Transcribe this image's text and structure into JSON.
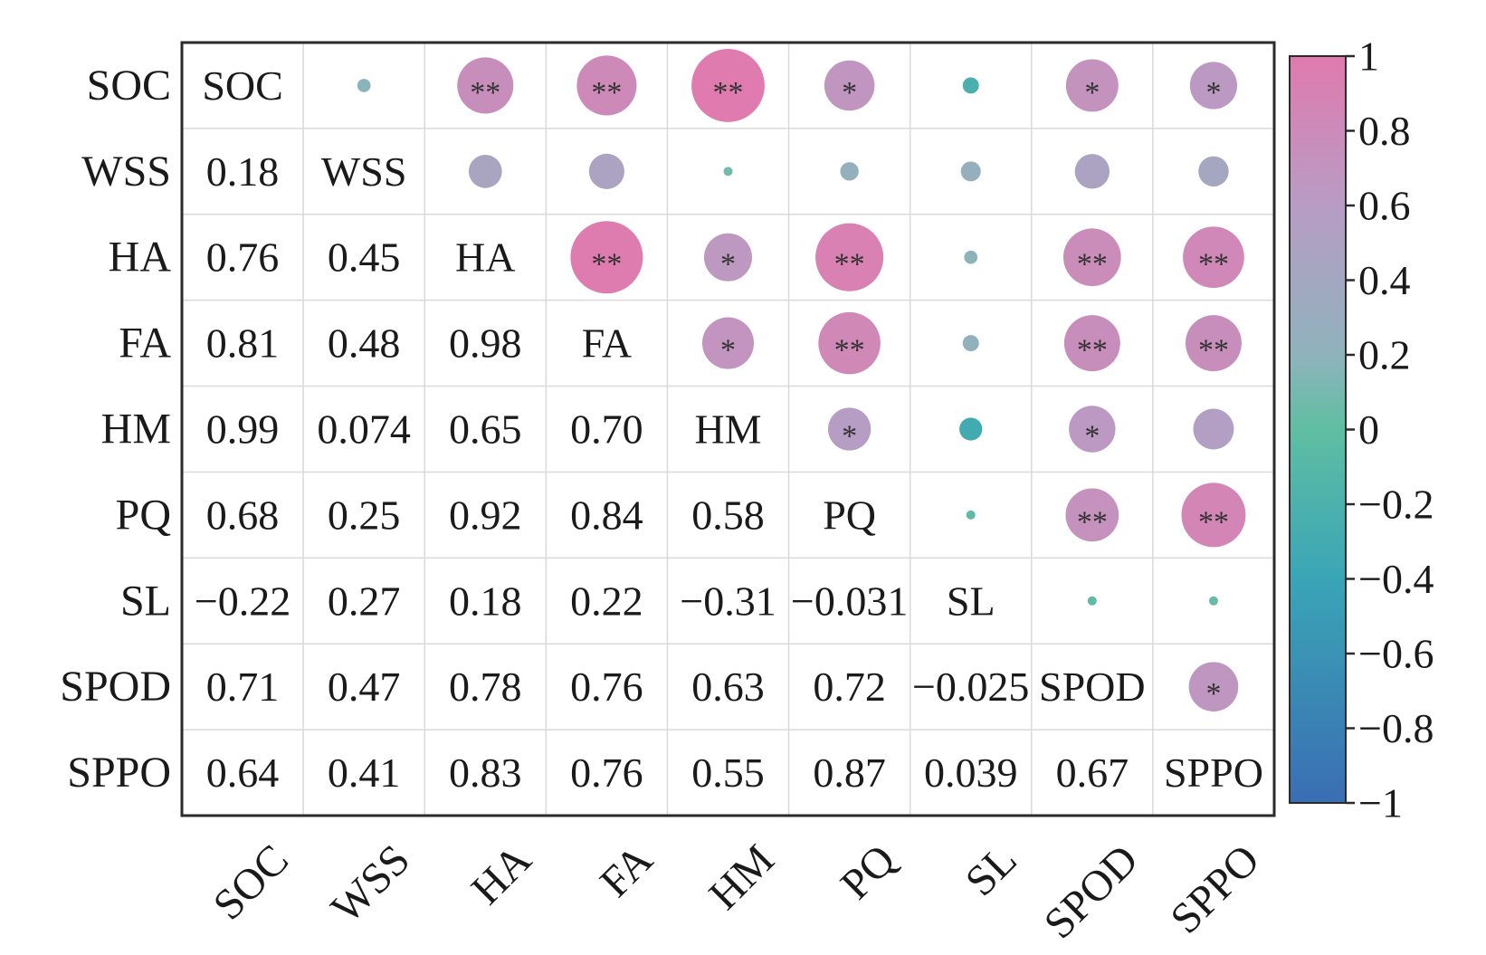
{
  "chart_data": {
    "type": "heatmap",
    "variables": [
      "SOC",
      "WSS",
      "HA",
      "FA",
      "HM",
      "PQ",
      "SL",
      "SPOD",
      "SPPO"
    ],
    "lower_triangle_labels": [
      [
        "SOC",
        "",
        "",
        "",
        "",
        "",
        "",
        "",
        ""
      ],
      [
        "0.18",
        "WSS",
        "",
        "",
        "",
        "",
        "",
        "",
        ""
      ],
      [
        "0.76",
        "0.45",
        "HA",
        "",
        "",
        "",
        "",
        "",
        ""
      ],
      [
        "0.81",
        "0.48",
        "0.98",
        "FA",
        "",
        "",
        "",
        "",
        ""
      ],
      [
        "0.99",
        "0.074",
        "0.65",
        "0.70",
        "HM",
        "",
        "",
        "",
        ""
      ],
      [
        "0.68",
        "0.25",
        "0.92",
        "0.84",
        "0.58",
        "PQ",
        "",
        "",
        ""
      ],
      [
        "−0.22",
        "0.27",
        "0.18",
        "0.22",
        "−0.31",
        "−0.031",
        "SL",
        "",
        ""
      ],
      [
        "0.71",
        "0.47",
        "0.78",
        "0.76",
        "0.63",
        "0.72",
        "−0.025",
        "SPOD",
        ""
      ],
      [
        "0.64",
        "0.41",
        "0.83",
        "0.76",
        "0.55",
        "0.87",
        "0.039",
        "0.67",
        "SPPO"
      ]
    ],
    "correlation_matrix": [
      [
        1,
        0.18,
        0.76,
        0.81,
        0.99,
        0.68,
        -0.22,
        0.71,
        0.64
      ],
      [
        0.18,
        1,
        0.45,
        0.48,
        0.074,
        0.25,
        0.27,
        0.47,
        0.41
      ],
      [
        0.76,
        0.45,
        1,
        0.98,
        0.65,
        0.92,
        0.18,
        0.78,
        0.83
      ],
      [
        0.81,
        0.48,
        0.98,
        1,
        0.7,
        0.84,
        0.22,
        0.76,
        0.76
      ],
      [
        0.99,
        0.074,
        0.65,
        0.7,
        1,
        0.58,
        -0.31,
        0.63,
        0.55
      ],
      [
        0.68,
        0.25,
        0.92,
        0.84,
        0.58,
        1,
        -0.031,
        0.72,
        0.87
      ],
      [
        -0.22,
        0.27,
        0.18,
        0.22,
        -0.31,
        -0.031,
        1,
        -0.025,
        0.039
      ],
      [
        0.71,
        0.47,
        0.78,
        0.76,
        0.63,
        0.72,
        -0.025,
        1,
        0.67
      ],
      [
        0.64,
        0.41,
        0.83,
        0.76,
        0.55,
        0.87,
        0.039,
        0.67,
        1
      ]
    ],
    "significance": [
      [
        "",
        "",
        "**",
        "**",
        "**",
        "*",
        "",
        "*",
        "*"
      ],
      [
        "",
        "",
        "",
        "",
        "",
        "",
        "",
        "",
        ""
      ],
      [
        "",
        "",
        "",
        "**",
        "*",
        "**",
        "",
        "**",
        "**"
      ],
      [
        "",
        "",
        "",
        "",
        "*",
        "**",
        "",
        "**",
        "**"
      ],
      [
        "",
        "",
        "",
        "",
        "",
        "*",
        "",
        "*",
        ""
      ],
      [
        "",
        "",
        "",
        "",
        "",
        "",
        "",
        "**",
        "**"
      ],
      [
        "",
        "",
        "",
        "",
        "",
        "",
        "",
        "",
        ""
      ],
      [
        "",
        "",
        "",
        "",
        "",
        "",
        "",
        "",
        "*"
      ],
      [
        "",
        "",
        "",
        "",
        "",
        "",
        "",
        "",
        ""
      ]
    ],
    "colorbar": {
      "range": [
        -1,
        1
      ],
      "tick_labels": [
        "1",
        "0.8",
        "0.6",
        "0.4",
        "0.2",
        "0",
        "−0.2",
        "−0.4",
        "−0.6",
        "−0.8",
        "−1"
      ],
      "colors": [
        "#e07aae",
        "#b89cc4",
        "#8fb3bc",
        "#5fbea2",
        "#3aa5b6",
        "#3a6eb3"
      ]
    },
    "circle_color_neutral": "#d4d4d4"
  }
}
